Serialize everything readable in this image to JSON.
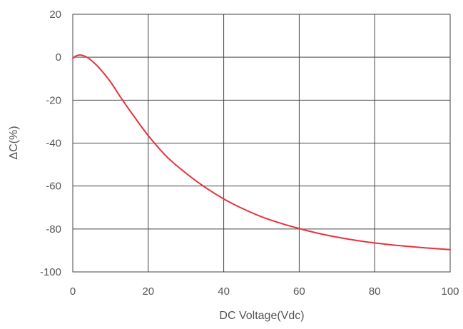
{
  "chart_data": {
    "type": "line",
    "title": "",
    "xlabel": "DC Voltage(Vdc)",
    "ylabel": "ΔC(%)",
    "xlim": [
      0,
      100
    ],
    "ylim": [
      -100,
      20
    ],
    "xticks": [
      0,
      20,
      40,
      60,
      80,
      100
    ],
    "yticks": [
      20,
      0,
      -20,
      -40,
      -60,
      -80,
      -100
    ],
    "grid": true,
    "legend": "none",
    "series": [
      {
        "color": "#e8323c",
        "x": [
          0,
          1,
          2,
          3,
          4,
          5,
          7,
          10,
          13,
          16,
          20,
          25,
          30,
          35,
          40,
          45,
          50,
          55,
          60,
          65,
          70,
          75,
          80,
          85,
          90,
          95,
          100
        ],
        "y": [
          -0.5,
          0.7,
          1.0,
          0.6,
          -0.3,
          -1.6,
          -5.0,
          -11.5,
          -19.5,
          -27.0,
          -36.5,
          -46.5,
          -54.0,
          -60.5,
          -66.0,
          -70.5,
          -74.3,
          -77.3,
          -79.8,
          -82.0,
          -83.8,
          -85.3,
          -86.5,
          -87.5,
          -88.3,
          -89.0,
          -89.6
        ]
      }
    ]
  }
}
